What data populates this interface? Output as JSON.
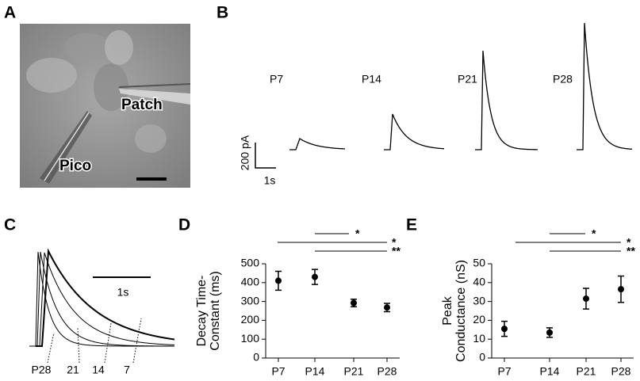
{
  "panel_labels": [
    "A",
    "B",
    "C",
    "D",
    "E"
  ],
  "panel_a": {
    "labels": [
      "Patch",
      "Pico"
    ]
  },
  "panel_b": {
    "traces": [
      "P7",
      "P14",
      "P21",
      "P28"
    ],
    "scale_y": "200 pA",
    "scale_x": "1s"
  },
  "panel_c": {
    "scale_x": "1s",
    "labels": [
      "P28",
      "21",
      "14",
      "7"
    ]
  },
  "chart_data": [
    {
      "type": "errorbar",
      "ylabel": [
        "Decay Time-",
        "Constant (ms)"
      ],
      "categories": [
        "P7",
        "P14",
        "P21",
        "P28"
      ],
      "values": [
        410,
        430,
        292,
        268
      ],
      "errors": [
        50,
        40,
        20,
        22
      ],
      "color": "#000000",
      "ylim": [
        0,
        500
      ],
      "yticks": [
        0,
        100,
        200,
        300,
        400,
        500
      ],
      "significance": [
        "*",
        "*",
        "**"
      ]
    },
    {
      "type": "errorbar",
      "ylabel": [
        "Peak",
        "Conductance (nS)"
      ],
      "categories": [
        "P7",
        "P14",
        "P21",
        "P28"
      ],
      "values": [
        15.5,
        13.5,
        31.5,
        36.5
      ],
      "errors": [
        4,
        2.5,
        5.5,
        7
      ],
      "color": "#000000",
      "ylim": [
        0,
        50
      ],
      "yticks": [
        0,
        10,
        20,
        30,
        40,
        50
      ],
      "significance": [
        "*",
        "*",
        "**"
      ]
    }
  ]
}
